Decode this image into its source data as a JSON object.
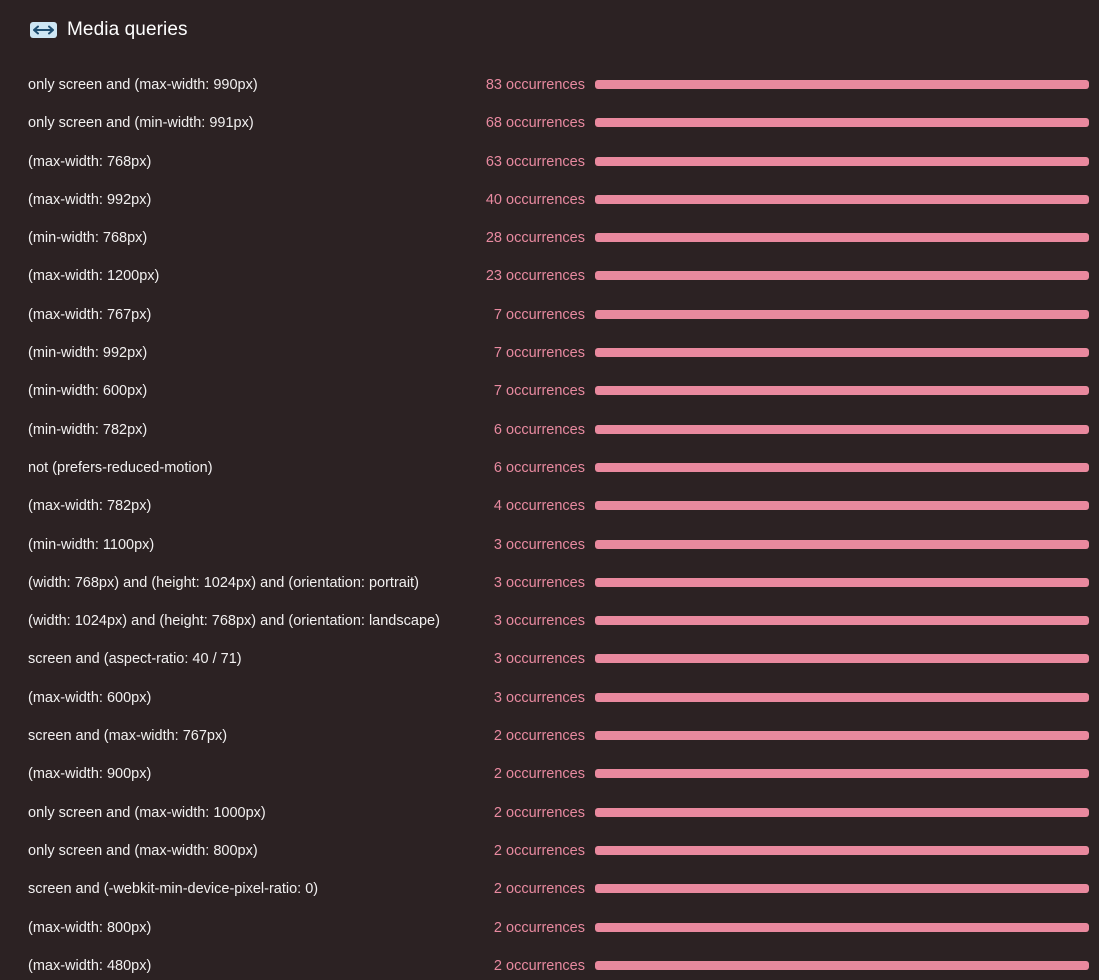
{
  "header": {
    "title": "Media queries",
    "icon": "horizontal-resize-icon"
  },
  "colors": {
    "background": "#2c2223",
    "bar": "#e9899e",
    "count_text": "#e88aa0",
    "icon_bg": "#cde6f4"
  },
  "media_queries": [
    {
      "query": "only screen and (max-width: 990px)",
      "count": "83 occurrences",
      "fill": 1.0
    },
    {
      "query": "only screen and (min-width: 991px)",
      "count": "68 occurrences",
      "fill": 1.0
    },
    {
      "query": "(max-width: 768px)",
      "count": "63 occurrences",
      "fill": 1.0
    },
    {
      "query": "(max-width: 992px)",
      "count": "40 occurrences",
      "fill": 1.0
    },
    {
      "query": "(min-width: 768px)",
      "count": "28 occurrences",
      "fill": 1.0
    },
    {
      "query": "(max-width: 1200px)",
      "count": "23 occurrences",
      "fill": 1.0
    },
    {
      "query": "(max-width: 767px)",
      "count": "7 occurrences",
      "fill": 1.0
    },
    {
      "query": "(min-width: 992px)",
      "count": "7 occurrences",
      "fill": 1.0
    },
    {
      "query": "(min-width: 600px)",
      "count": "7 occurrences",
      "fill": 1.0
    },
    {
      "query": "(min-width: 782px)",
      "count": "6 occurrences",
      "fill": 1.0
    },
    {
      "query": "not (prefers-reduced-motion)",
      "count": "6 occurrences",
      "fill": 1.0
    },
    {
      "query": "(max-width: 782px)",
      "count": "4 occurrences",
      "fill": 1.0
    },
    {
      "query": "(min-width: 1100px)",
      "count": "3 occurrences",
      "fill": 1.0
    },
    {
      "query": "(width: 768px) and (height: 1024px) and (orientation: portrait)",
      "count": "3 occurrences",
      "fill": 1.0
    },
    {
      "query": "(width: 1024px) and (height: 768px) and (orientation: landscape)",
      "count": "3 occurrences",
      "fill": 1.0
    },
    {
      "query": "screen and (aspect-ratio: 40 / 71)",
      "count": "3 occurrences",
      "fill": 1.0
    },
    {
      "query": "(max-width: 600px)",
      "count": "3 occurrences",
      "fill": 1.0
    },
    {
      "query": "screen and (max-width: 767px)",
      "count": "2 occurrences",
      "fill": 1.0
    },
    {
      "query": "(max-width: 900px)",
      "count": "2 occurrences",
      "fill": 1.0
    },
    {
      "query": "only screen and (max-width: 1000px)",
      "count": "2 occurrences",
      "fill": 1.0
    },
    {
      "query": "only screen and (max-width: 800px)",
      "count": "2 occurrences",
      "fill": 1.0
    },
    {
      "query": "screen and (-webkit-min-device-pixel-ratio: 0)",
      "count": "2 occurrences",
      "fill": 1.0
    },
    {
      "query": "(max-width: 800px)",
      "count": "2 occurrences",
      "fill": 1.0
    },
    {
      "query": "(max-width: 480px)",
      "count": "2 occurrences",
      "fill": 1.0
    }
  ]
}
